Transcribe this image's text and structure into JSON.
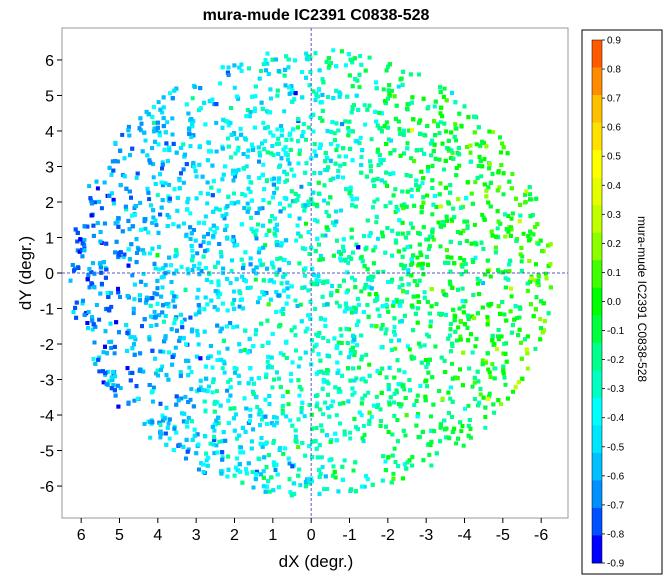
{
  "chart_data": {
    "type": "scatter",
    "title": "mura-mude IC2391  C0838-528",
    "xlabel": "dX (degr.)",
    "ylabel": "dY (degr.)",
    "colorbar_label": "mura-mude IC2391  C0838-528",
    "xlim": [
      6.5,
      -6.7
    ],
    "ylim": [
      -6.9,
      6.9
    ],
    "x_ticks": [
      6,
      5,
      4,
      3,
      2,
      1,
      0,
      -1,
      -2,
      -3,
      -4,
      -5,
      -6
    ],
    "y_ticks": [
      6,
      5,
      4,
      3,
      2,
      1,
      0,
      -1,
      -2,
      -3,
      -4,
      -5,
      -6
    ],
    "x_tick_labels": [
      "6",
      "5",
      "4",
      "3",
      "2",
      "1",
      "0",
      "-1",
      "-2",
      "-3",
      "-4",
      "-5",
      "-6"
    ],
    "y_tick_labels": [
      "6",
      "5",
      "4",
      "3",
      "2",
      "1",
      "0",
      "-1",
      "-2",
      "-3",
      "-4",
      "-5",
      "-6"
    ],
    "field_radius_deg": 6.3,
    "color_range": [
      -0.9,
      0.9
    ],
    "colorbar_ticks": [
      0.9,
      0.8,
      0.7,
      0.6,
      0.5,
      0.4,
      0.3,
      0.2,
      0.1,
      0.0,
      -0.1,
      -0.2,
      -0.3,
      -0.4,
      -0.5,
      -0.6,
      -0.7,
      -0.8,
      -0.9
    ],
    "colorbar_tick_labels": [
      "0.9",
      "0.8",
      "0.7",
      "0.6",
      "0.5",
      "0.4",
      "0.3",
      "0.2",
      "0.1",
      "0.0",
      "-0.1",
      "-0.2",
      "-0.3",
      "-0.4",
      "-0.5",
      "-0.6",
      "-0.7",
      "-0.8",
      "-0.9"
    ],
    "colorbar_colors": [
      "#ff5a00",
      "#ff8c00",
      "#ffc000",
      "#ffe000",
      "#ffff00",
      "#e6ff00",
      "#c0ff00",
      "#8cff00",
      "#40ff00",
      "#00ff00",
      "#00ff40",
      "#00ff8c",
      "#00ffc0",
      "#00ffff",
      "#00e6ff",
      "#00c0ff",
      "#0090ff",
      "#0050ff",
      "#0000ff"
    ],
    "crosshair_color": "#5555cc",
    "gradient_model": {
      "description_of_trend": "value increases toward negative dX",
      "slope_per_degree_dX": -0.06,
      "offset": -0.32,
      "spread": 0.12
    },
    "point_count": 5200
  }
}
